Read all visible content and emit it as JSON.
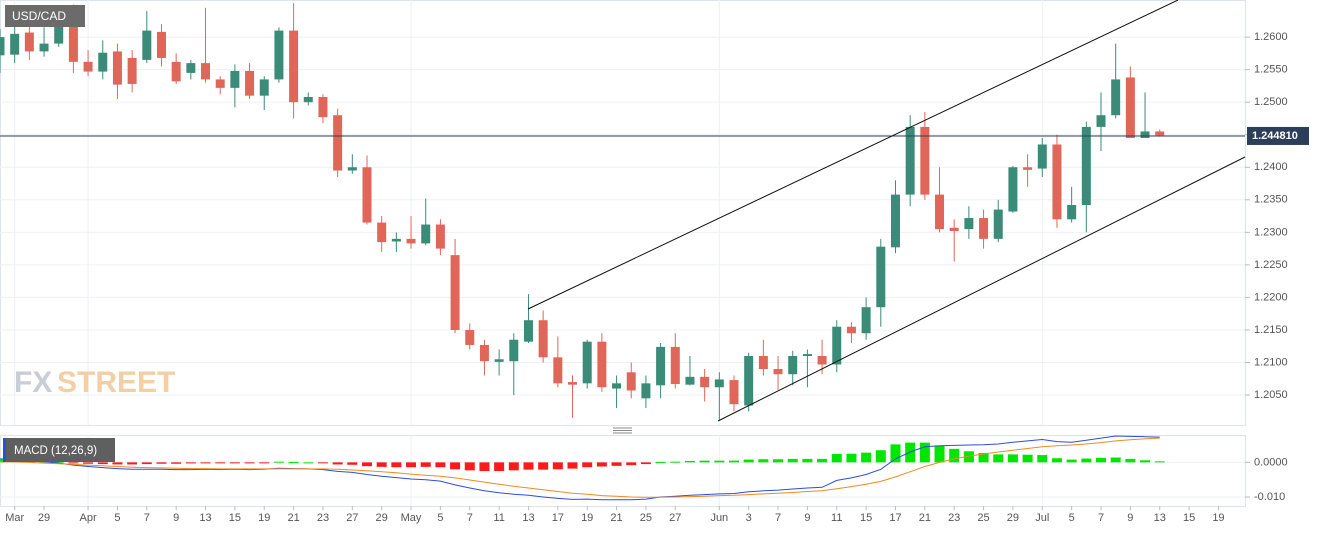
{
  "chart_data": {
    "type": "candlestick",
    "symbol": "USD/CAD",
    "categories": [
      null,
      "Mar",
      null,
      "29",
      null,
      null,
      "Apr",
      null,
      "5",
      null,
      "7",
      null,
      "9",
      null,
      "13",
      null,
      "15",
      null,
      "19",
      null,
      "21",
      null,
      "23",
      null,
      "27",
      null,
      "29",
      null,
      "May",
      null,
      "5",
      null,
      "7",
      null,
      "11",
      null,
      "13",
      null,
      "17",
      null,
      "19",
      null,
      "21",
      null,
      "25",
      null,
      "27",
      null,
      null,
      "Jun",
      null,
      "3",
      null,
      "7",
      null,
      "9",
      null,
      "11",
      null,
      "15",
      null,
      "17",
      null,
      "21",
      null,
      "23",
      null,
      "25",
      null,
      "29",
      null,
      "Jul",
      null,
      "5",
      null,
      "7",
      null,
      "9",
      null,
      "13",
      null,
      "15",
      null,
      "19"
    ],
    "open": [
      1.2572,
      1.2573,
      1.2607,
      1.2578,
      1.259,
      1.2625,
      1.2562,
      1.2547,
      1.2578,
      1.2568,
      1.2565,
      1.2608,
      1.2562,
      1.2545,
      1.256,
      1.2535,
      1.2522,
      1.2548,
      1.251,
      1.2535,
      1.261,
      1.25,
      1.2508,
      1.248,
      1.2395,
      1.24,
      1.2315,
      1.2286,
      1.229,
      1.2283,
      1.2312,
      1.2265,
      1.215,
      1.2127,
      1.2101,
      1.2102,
      1.2132,
      1.2165,
      1.2108,
      1.207,
      1.2068,
      1.2132,
      1.206,
      1.2085,
      1.2045,
      1.2065,
      1.2124,
      1.2066,
      1.2078,
      1.2062,
      1.2073,
      1.2034,
      1.211,
      1.209,
      1.2082,
      1.211,
      1.211,
      1.2097,
      1.2155,
      1.2145,
      1.2185,
      1.2277,
      1.2358,
      1.2462,
      1.2358,
      1.2307,
      1.2305,
      1.2322,
      1.229,
      1.2332,
      1.24,
      1.2398,
      1.2435,
      1.232,
      1.2342,
      1.2462,
      1.248,
      1.2538,
      1.2445,
      1.2455,
      null,
      null,
      null,
      null
    ],
    "high": [
      1.2612,
      1.262,
      1.263,
      1.2615,
      1.264,
      1.265,
      1.258,
      1.2595,
      1.259,
      1.258,
      1.264,
      1.262,
      1.2575,
      1.2565,
      1.2645,
      1.254,
      1.2558,
      1.256,
      1.254,
      1.2615,
      1.2652,
      1.2515,
      1.2512,
      1.249,
      1.242,
      1.2418,
      1.2325,
      1.23,
      1.2325,
      1.2352,
      1.232,
      1.229,
      1.216,
      1.2135,
      1.212,
      1.2145,
      1.2205,
      1.218,
      1.214,
      1.208,
      1.2135,
      1.2145,
      1.208,
      1.21,
      1.208,
      1.213,
      1.2145,
      1.211,
      1.209,
      1.2085,
      1.208,
      1.2115,
      1.2135,
      1.211,
      1.2118,
      1.212,
      1.2135,
      1.2165,
      1.2162,
      1.22,
      1.229,
      1.238,
      1.248,
      1.2485,
      1.24,
      1.232,
      1.234,
      1.2335,
      1.235,
      1.2402,
      1.242,
      1.2445,
      1.245,
      1.237,
      1.247,
      1.2515,
      1.259,
      1.2555,
      1.2515,
      1.2458,
      null,
      null,
      null,
      null
    ],
    "low": [
      1.2545,
      1.256,
      1.2565,
      1.257,
      1.2585,
      1.2545,
      1.254,
      1.2535,
      1.2505,
      1.2515,
      1.256,
      1.2555,
      1.2528,
      1.2535,
      1.253,
      1.2512,
      1.2492,
      1.2505,
      1.2488,
      1.253,
      1.2475,
      1.2495,
      1.2468,
      1.2385,
      1.239,
      1.2312,
      1.227,
      1.227,
      1.2275,
      1.228,
      1.2265,
      1.2145,
      1.212,
      1.208,
      1.208,
      1.205,
      1.213,
      1.21,
      1.2062,
      1.2015,
      1.206,
      1.2055,
      1.203,
      1.2045,
      1.203,
      1.2045,
      1.206,
      1.2065,
      1.204,
      1.2012,
      1.2025,
      1.2025,
      1.208,
      1.2058,
      1.2065,
      1.2062,
      1.2082,
      1.2085,
      1.213,
      1.2135,
      1.2155,
      1.2268,
      1.234,
      1.235,
      1.23,
      1.2255,
      1.229,
      1.2275,
      1.2285,
      1.233,
      1.237,
      1.2385,
      1.2307,
      1.2315,
      1.23,
      1.2425,
      1.2475,
      1.2445,
      1.2445,
      1.2447,
      null,
      null,
      null,
      null
    ],
    "close": [
      1.26,
      1.2605,
      1.2578,
      1.259,
      1.2622,
      1.2562,
      1.2547,
      1.2576,
      1.2527,
      1.2528,
      1.261,
      1.2568,
      1.2532,
      1.256,
      1.2535,
      1.2522,
      1.2548,
      1.251,
      1.2535,
      1.261,
      1.25,
      1.2508,
      1.2477,
      1.2395,
      1.24,
      1.2315,
      1.2285,
      1.229,
      1.2283,
      1.2312,
      1.2275,
      1.215,
      1.2127,
      1.2102,
      1.2105,
      1.2135,
      1.2165,
      1.2108,
      1.2068,
      1.2066,
      1.2132,
      1.2062,
      1.2068,
      1.2057,
      1.2068,
      1.2124,
      1.2067,
      1.2078,
      1.2062,
      1.2074,
      1.2036,
      1.211,
      1.209,
      1.2082,
      1.211,
      1.2113,
      1.2097,
      1.2155,
      1.2145,
      1.2185,
      1.2278,
      1.2358,
      1.2462,
      1.2358,
      1.2305,
      1.2302,
      1.2322,
      1.229,
      1.2335,
      1.24,
      1.2396,
      1.2435,
      1.232,
      1.2342,
      1.2462,
      1.248,
      1.2535,
      1.2445,
      1.2455,
      1.2449,
      null,
      null,
      null,
      null
    ],
    "up_color": "#3a8c78",
    "down_color": "#e0665a",
    "ylim": [
      1.2004,
      1.2657
    ],
    "yticks": [
      {
        "value": 1.205,
        "label": "1.2050"
      },
      {
        "value": 1.21,
        "label": "1.2100"
      },
      {
        "value": 1.215,
        "label": "1.2150"
      },
      {
        "value": 1.22,
        "label": "1.2200"
      },
      {
        "value": 1.225,
        "label": "1.2250"
      },
      {
        "value": 1.23,
        "label": "1.2300"
      },
      {
        "value": 1.235,
        "label": "1.2350"
      },
      {
        "value": 1.24,
        "label": "1.2400"
      },
      {
        "value": 1.245,
        "label": "1.2450"
      },
      {
        "value": 1.25,
        "label": "1.2500"
      },
      {
        "value": 1.255,
        "label": "1.2550"
      },
      {
        "value": 1.26,
        "label": "1.2600"
      }
    ],
    "last_price": {
      "value": 1.24481,
      "label": "1.244810",
      "color": "#2c3e5a"
    },
    "watermark": [
      "FX",
      "STREET"
    ],
    "indicator": {
      "type": "macd",
      "name": "MACD (12,26,9)",
      "ylim": [
        -0.0126,
        0.0079
      ],
      "yticks": [
        {
          "value": 0,
          "label": "0.0000"
        },
        {
          "value": -0.01,
          "label": "-0.010"
        }
      ],
      "macd": {
        "color": "#2b4fd8",
        "values": [
          0.001,
          0.0008,
          0.0005,
          0.0002,
          -0.0002,
          -0.0008,
          -0.0012,
          -0.0015,
          -0.0018,
          -0.002,
          -0.002,
          -0.002,
          -0.0021,
          -0.0021,
          -0.002,
          -0.0021,
          -0.002,
          -0.0021,
          -0.002,
          -0.0017,
          -0.0018,
          -0.0019,
          -0.0021,
          -0.0026,
          -0.0029,
          -0.0035,
          -0.004,
          -0.0044,
          -0.0048,
          -0.005,
          -0.0054,
          -0.0065,
          -0.0074,
          -0.0082,
          -0.0088,
          -0.0092,
          -0.0095,
          -0.01,
          -0.0104,
          -0.0107,
          -0.0106,
          -0.0108,
          -0.0108,
          -0.0108,
          -0.0106,
          -0.01,
          -0.0098,
          -0.0095,
          -0.0093,
          -0.0091,
          -0.009,
          -0.0085,
          -0.0082,
          -0.008,
          -0.0077,
          -0.0074,
          -0.0072,
          -0.0052,
          -0.0045,
          -0.0035,
          -0.002,
          0.001,
          0.003,
          0.0045,
          0.0048,
          0.0049,
          0.005,
          0.0051,
          0.0053,
          0.0058,
          0.0062,
          0.0066,
          0.006,
          0.0058,
          0.0064,
          0.007,
          0.0076,
          0.0075,
          0.0074,
          0.0073,
          null,
          null,
          null,
          null
        ]
      },
      "signal": {
        "color": "#f08a24",
        "values": [
          0.0002,
          0.0001,
          0,
          -0.0002,
          -0.0004,
          -0.0006,
          -0.0008,
          -0.001,
          -0.0012,
          -0.0014,
          -0.0015,
          -0.0016,
          -0.0017,
          -0.0018,
          -0.0018,
          -0.0019,
          -0.0019,
          -0.0019,
          -0.0019,
          -0.0019,
          -0.0019,
          -0.0019,
          -0.0019,
          -0.002,
          -0.0022,
          -0.0024,
          -0.0027,
          -0.003,
          -0.0034,
          -0.0037,
          -0.004,
          -0.0045,
          -0.0051,
          -0.0057,
          -0.0063,
          -0.0069,
          -0.0074,
          -0.0079,
          -0.0084,
          -0.0089,
          -0.0092,
          -0.0096,
          -0.0098,
          -0.01,
          -0.0101,
          -0.0101,
          -0.01,
          -0.0099,
          -0.0098,
          -0.0096,
          -0.0095,
          -0.0093,
          -0.0091,
          -0.0089,
          -0.0087,
          -0.0084,
          -0.0082,
          -0.0076,
          -0.007,
          -0.0063,
          -0.0055,
          -0.0042,
          -0.0027,
          -0.0012,
          0,
          0.001,
          0.0018,
          0.0024,
          0.003,
          0.0035,
          0.004,
          0.0045,
          0.0048,
          0.005,
          0.0053,
          0.0057,
          0.0062,
          0.0065,
          0.0068,
          0.007,
          null,
          null,
          null,
          null
        ]
      },
      "histogram": {
        "up_color": "#00e600",
        "down_color": "#ff1a1a",
        "values": [
          0.0008,
          0.0007,
          0.0005,
          0.0004,
          0.0002,
          -0.0002,
          -0.0004,
          -0.0005,
          -0.0006,
          -0.0006,
          -0.0005,
          -0.0004,
          -0.0004,
          -0.0003,
          -0.0002,
          -0.0002,
          -0.0001,
          -0.0002,
          -0.0001,
          0.0002,
          0.0001,
          0,
          -0.0002,
          -0.0006,
          -0.0007,
          -0.0011,
          -0.0013,
          -0.0014,
          -0.0014,
          -0.0013,
          -0.0014,
          -0.002,
          -0.0023,
          -0.0025,
          -0.0025,
          -0.0023,
          -0.0021,
          -0.0021,
          -0.002,
          -0.0018,
          -0.0014,
          -0.0012,
          -0.001,
          -0.0008,
          -0.0005,
          0.0001,
          0.0002,
          0.0004,
          0.0005,
          0.0005,
          0.0005,
          0.0008,
          0.0009,
          0.0009,
          0.001,
          0.001,
          0.001,
          0.0024,
          0.0025,
          0.0028,
          0.0035,
          0.0052,
          0.0057,
          0.0057,
          0.0048,
          0.0039,
          0.0032,
          0.0027,
          0.0023,
          0.0023,
          0.0022,
          0.0021,
          0.0012,
          0.0008,
          0.0011,
          0.0013,
          0.0014,
          0.001,
          0.0006,
          0.0003,
          null,
          null,
          null,
          null
        ]
      }
    }
  }
}
